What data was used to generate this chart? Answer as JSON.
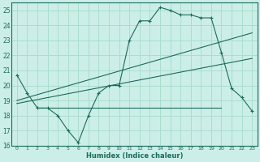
{
  "xlabel": "Humidex (Indice chaleur)",
  "bg_color": "#cceee8",
  "grid_color": "#aaddcc",
  "line_color": "#1a6b5a",
  "xlim": [
    -0.5,
    23.5
  ],
  "ylim": [
    16,
    25.5
  ],
  "yticks": [
    16,
    17,
    18,
    19,
    20,
    21,
    22,
    23,
    24,
    25
  ],
  "xticks": [
    0,
    1,
    2,
    3,
    4,
    5,
    6,
    7,
    8,
    9,
    10,
    11,
    12,
    13,
    14,
    15,
    16,
    17,
    18,
    19,
    20,
    21,
    22,
    23
  ],
  "series1_x": [
    0,
    1,
    2,
    3,
    4,
    5,
    6,
    7,
    8,
    9,
    10,
    11,
    12,
    13,
    14,
    15,
    16,
    17,
    18,
    19,
    20,
    21,
    22,
    23
  ],
  "series1_y": [
    20.7,
    19.5,
    18.5,
    18.5,
    18.0,
    17.0,
    16.2,
    18.0,
    19.5,
    20.0,
    20.0,
    23.0,
    24.3,
    24.3,
    25.2,
    25.0,
    24.7,
    24.7,
    24.5,
    24.5,
    22.2,
    19.8,
    19.2,
    18.3
  ],
  "series2_x": [
    0,
    23
  ],
  "series2_y": [
    19.0,
    23.5
  ],
  "series3_x": [
    2,
    20
  ],
  "series3_y": [
    18.5,
    18.5
  ],
  "series4_x": [
    0,
    23
  ],
  "series4_y": [
    18.8,
    21.8
  ]
}
